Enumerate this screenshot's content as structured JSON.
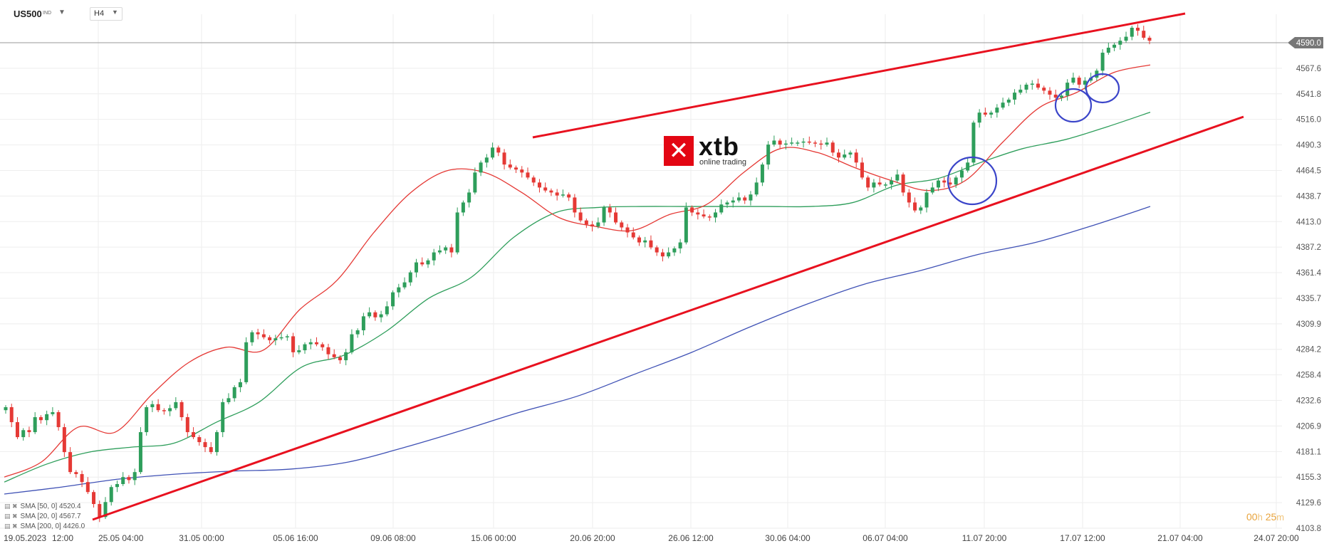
{
  "header": {
    "symbol": "US500",
    "symbol_tag": "IND",
    "timeframe": "H4"
  },
  "legend": [
    {
      "label": "SMA [50, 0] 4520.4",
      "color": "#2e9e5b"
    },
    {
      "label": "SMA [20, 0] 4567.7",
      "color": "#e53935"
    },
    {
      "label": "SMA [200, 0] 4426.0",
      "color": "#3f51b5"
    }
  ],
  "timer": {
    "hours": "00",
    "h_unit": "h",
    "minutes": "25",
    "m_unit": "m"
  },
  "logo": {
    "word": "xtb",
    "sub": "online trading"
  },
  "colors": {
    "up": "#2e9e5b",
    "down": "#e53935",
    "trend": "#e8111f",
    "sma20": "#e53935",
    "sma50": "#2e9e5b",
    "sma200": "#3f51b5",
    "annot": "#3b45c9",
    "grid": "#eeeeee",
    "tag": "#777777"
  },
  "chart_data": {
    "type": "candlestick",
    "instrument": "US500",
    "timeframe": "H4",
    "ylim": [
      4103.8,
      4590.0
    ],
    "yticks": [
      "4590.0",
      "4567.6",
      "4541.8",
      "4516.0",
      "4490.3",
      "4464.5",
      "4438.7",
      "4413.0",
      "4387.2",
      "4361.4",
      "4335.7",
      "4309.9",
      "4284.2",
      "4258.4",
      "4232.6",
      "4206.9",
      "4181.1",
      "4155.3",
      "4129.6",
      "4103.8"
    ],
    "xticks": [
      "19.05.2023",
      "12:00",
      "25.05 04:00",
      "31.05 00:00",
      "05.06 16:00",
      "09.06 08:00",
      "15.06 00:00",
      "20.06 20:00",
      "26.06 12:00",
      "30.06 04:00",
      "06.07 04:00",
      "11.07 20:00",
      "17.07 12:00",
      "21.07 04:00",
      "24.07 20:00"
    ],
    "current_price": "4590.0",
    "closes": [
      4225,
      4210,
      4195,
      4202,
      4200,
      4215,
      4212,
      4218,
      4220,
      4205,
      4180,
      4160,
      4158,
      4150,
      4140,
      4128,
      4115,
      4130,
      4145,
      4148,
      4155,
      4152,
      4160,
      4200,
      4225,
      4228,
      4222,
      4221,
      4224,
      4230,
      4215,
      4200,
      4195,
      4190,
      4185,
      4180,
      4200,
      4230,
      4234,
      4245,
      4250,
      4290,
      4300,
      4298,
      4295,
      4292,
      4294,
      4295,
      4296,
      4280,
      4282,
      4288,
      4290,
      4288,
      4285,
      4278,
      4275,
      4272,
      4280,
      4298,
      4302,
      4316,
      4320,
      4315,
      4318,
      4326,
      4340,
      4345,
      4350,
      4360,
      4370,
      4368,
      4372,
      4380,
      4382,
      4385,
      4380,
      4420,
      4430,
      4440,
      4460,
      4470,
      4475,
      4485,
      4480,
      4468,
      4465,
      4463,
      4460,
      4455,
      4450,
      4445,
      4442,
      4440,
      4437,
      4438,
      4435,
      4420,
      4412,
      4408,
      4406,
      4410,
      4425,
      4420,
      4410,
      4405,
      4400,
      4395,
      4390,
      4392,
      4385,
      4380,
      4376,
      4380,
      4384,
      4390,
      4425,
      4420,
      4418,
      4416,
      4415,
      4420,
      4428,
      4430,
      4432,
      4435,
      4432,
      4438,
      4450,
      4468,
      4488,
      4492,
      4488,
      4489,
      4490,
      4490,
      4491,
      4490,
      4489,
      4488,
      4490,
      4480,
      4475,
      4478,
      4480,
      4470,
      4455,
      4445,
      4450,
      4448,
      4448,
      4452,
      4458,
      4440,
      4430,
      4422,
      4425,
      4440,
      4445,
      4452,
      4450,
      4448,
      4455,
      4462,
      4470,
      4510,
      4520,
      4518,
      4520,
      4525,
      4530,
      4533,
      4540,
      4543,
      4548,
      4549,
      4545,
      4542,
      4538,
      4535,
      4537,
      4550,
      4555,
      4548,
      4552,
      4555,
      4562,
      4580,
      4585,
      4588,
      4592,
      4596,
      4605,
      4602,
      4595,
      4592
    ],
    "series": [
      {
        "name": "SMA [20, 0]",
        "values": [
          4155,
          4170,
          4205,
          4200,
          4238,
          4270,
          4285,
          4282,
          4323,
          4352,
          4400,
          4440,
          4462,
          4460,
          4440,
          4415,
          4406,
          4402,
          4418,
          4428,
          4460,
          4484,
          4480,
          4465,
          4452,
          4442,
          4452,
          4490,
          4525,
          4540,
          4560,
          4567.7
        ]
      },
      {
        "name": "SMA [50, 0]",
        "values": [
          4150,
          4168,
          4180,
          4185,
          4189,
          4210,
          4230,
          4265,
          4277,
          4301,
          4334,
          4355,
          4395,
          4420,
          4425,
          4426,
          4426,
          4426,
          4426,
          4426,
          4430,
          4447,
          4454,
          4470,
          4484,
          4493,
          4506,
          4520.4
        ]
      },
      {
        "name": "SMA [200, 0]",
        "values": [
          4138,
          4145,
          4153,
          4158,
          4161,
          4163,
          4170,
          4185,
          4202,
          4220,
          4236,
          4258,
          4280,
          4305,
          4328,
          4348,
          4362,
          4378,
          4390,
          4407,
          4426.0
        ]
      }
    ]
  }
}
